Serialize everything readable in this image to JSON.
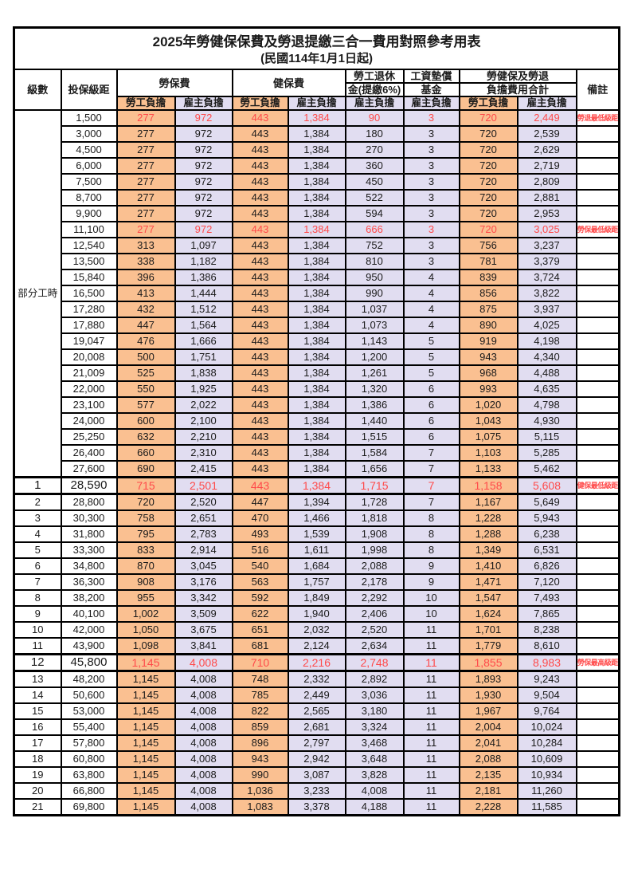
{
  "title": "2025年勞健保保費及勞退提繳三合一費用對照參考用表",
  "subtitle": "(民國114年1月1日起)",
  "colors": {
    "employee_bg": "#FAC091",
    "employer_bg": "#E1DDF1",
    "highlight_text": "#FF4A4A"
  },
  "header": {
    "level": "級數",
    "bracket": "投保級距",
    "labor_ins": "勞保費",
    "health_ins": "健保費",
    "pension_line1": "勞工退休",
    "pension_line2": "金(提繳6%)",
    "wage_fund_line1": "工資墊償",
    "wage_fund_line2": "基金",
    "total_line1": "勞健保及勞退",
    "total_line2": "負擔費用合計",
    "remark": "備註",
    "employee": "勞工負擔",
    "employer": "雇主負擔"
  },
  "group": {
    "label": "部分工時",
    "row_span": 23
  },
  "rows": [
    {
      "level": null,
      "bracket": "1,500",
      "values": [
        "277",
        "972",
        "443",
        "1,384",
        "90",
        "3",
        "720",
        "2,449"
      ],
      "remark": "勞退最低級距",
      "red": true,
      "emphasis": false
    },
    {
      "level": null,
      "bracket": "3,000",
      "values": [
        "277",
        "972",
        "443",
        "1,384",
        "180",
        "3",
        "720",
        "2,539"
      ],
      "remark": "",
      "red": false,
      "emphasis": false
    },
    {
      "level": null,
      "bracket": "4,500",
      "values": [
        "277",
        "972",
        "443",
        "1,384",
        "270",
        "3",
        "720",
        "2,629"
      ],
      "remark": "",
      "red": false,
      "emphasis": false
    },
    {
      "level": null,
      "bracket": "6,000",
      "values": [
        "277",
        "972",
        "443",
        "1,384",
        "360",
        "3",
        "720",
        "2,719"
      ],
      "remark": "",
      "red": false,
      "emphasis": false
    },
    {
      "level": null,
      "bracket": "7,500",
      "values": [
        "277",
        "972",
        "443",
        "1,384",
        "450",
        "3",
        "720",
        "2,809"
      ],
      "remark": "",
      "red": false,
      "emphasis": false
    },
    {
      "level": null,
      "bracket": "8,700",
      "values": [
        "277",
        "972",
        "443",
        "1,384",
        "522",
        "3",
        "720",
        "2,881"
      ],
      "remark": "",
      "red": false,
      "emphasis": false
    },
    {
      "level": null,
      "bracket": "9,900",
      "values": [
        "277",
        "972",
        "443",
        "1,384",
        "594",
        "3",
        "720",
        "2,953"
      ],
      "remark": "",
      "red": false,
      "emphasis": false
    },
    {
      "level": null,
      "bracket": "11,100",
      "values": [
        "277",
        "972",
        "443",
        "1,384",
        "666",
        "3",
        "720",
        "3,025"
      ],
      "remark": "勞保最低級距",
      "red": true,
      "emphasis": false
    },
    {
      "level": null,
      "bracket": "12,540",
      "values": [
        "313",
        "1,097",
        "443",
        "1,384",
        "752",
        "3",
        "756",
        "3,237"
      ],
      "remark": "",
      "red": false,
      "emphasis": false
    },
    {
      "level": null,
      "bracket": "13,500",
      "values": [
        "338",
        "1,182",
        "443",
        "1,384",
        "810",
        "3",
        "781",
        "3,379"
      ],
      "remark": "",
      "red": false,
      "emphasis": false
    },
    {
      "level": null,
      "bracket": "15,840",
      "values": [
        "396",
        "1,386",
        "443",
        "1,384",
        "950",
        "4",
        "839",
        "3,724"
      ],
      "remark": "",
      "red": false,
      "emphasis": false
    },
    {
      "level": null,
      "bracket": "16,500",
      "values": [
        "413",
        "1,444",
        "443",
        "1,384",
        "990",
        "4",
        "856",
        "3,822"
      ],
      "remark": "",
      "red": false,
      "emphasis": false
    },
    {
      "level": null,
      "bracket": "17,280",
      "values": [
        "432",
        "1,512",
        "443",
        "1,384",
        "1,037",
        "4",
        "875",
        "3,937"
      ],
      "remark": "",
      "red": false,
      "emphasis": false
    },
    {
      "level": null,
      "bracket": "17,880",
      "values": [
        "447",
        "1,564",
        "443",
        "1,384",
        "1,073",
        "4",
        "890",
        "4,025"
      ],
      "remark": "",
      "red": false,
      "emphasis": false
    },
    {
      "level": null,
      "bracket": "19,047",
      "values": [
        "476",
        "1,666",
        "443",
        "1,384",
        "1,143",
        "5",
        "919",
        "4,198"
      ],
      "remark": "",
      "red": false,
      "emphasis": false
    },
    {
      "level": null,
      "bracket": "20,008",
      "values": [
        "500",
        "1,751",
        "443",
        "1,384",
        "1,200",
        "5",
        "943",
        "4,340"
      ],
      "remark": "",
      "red": false,
      "emphasis": false
    },
    {
      "level": null,
      "bracket": "21,009",
      "values": [
        "525",
        "1,838",
        "443",
        "1,384",
        "1,261",
        "5",
        "968",
        "4,488"
      ],
      "remark": "",
      "red": false,
      "emphasis": false
    },
    {
      "level": null,
      "bracket": "22,000",
      "values": [
        "550",
        "1,925",
        "443",
        "1,384",
        "1,320",
        "6",
        "993",
        "4,635"
      ],
      "remark": "",
      "red": false,
      "emphasis": false
    },
    {
      "level": null,
      "bracket": "23,100",
      "values": [
        "577",
        "2,022",
        "443",
        "1,384",
        "1,386",
        "6",
        "1,020",
        "4,798"
      ],
      "remark": "",
      "red": false,
      "emphasis": false
    },
    {
      "level": null,
      "bracket": "24,000",
      "values": [
        "600",
        "2,100",
        "443",
        "1,384",
        "1,440",
        "6",
        "1,043",
        "4,930"
      ],
      "remark": "",
      "red": false,
      "emphasis": false
    },
    {
      "level": null,
      "bracket": "25,250",
      "values": [
        "632",
        "2,210",
        "443",
        "1,384",
        "1,515",
        "6",
        "1,075",
        "5,115"
      ],
      "remark": "",
      "red": false,
      "emphasis": false
    },
    {
      "level": null,
      "bracket": "26,400",
      "values": [
        "660",
        "2,310",
        "443",
        "1,384",
        "1,584",
        "7",
        "1,103",
        "5,285"
      ],
      "remark": "",
      "red": false,
      "emphasis": false
    },
    {
      "level": null,
      "bracket": "27,600",
      "values": [
        "690",
        "2,415",
        "443",
        "1,384",
        "1,656",
        "7",
        "1,133",
        "5,462"
      ],
      "remark": "",
      "red": false,
      "emphasis": false
    },
    {
      "level": "1",
      "bracket": "28,590",
      "values": [
        "715",
        "2,501",
        "443",
        "1,384",
        "1,715",
        "7",
        "1,158",
        "5,608"
      ],
      "remark": "健保最低級距",
      "red": true,
      "emphasis": true
    },
    {
      "level": "2",
      "bracket": "28,800",
      "values": [
        "720",
        "2,520",
        "447",
        "1,394",
        "1,728",
        "7",
        "1,167",
        "5,649"
      ],
      "remark": "",
      "red": false,
      "emphasis": false
    },
    {
      "level": "3",
      "bracket": "30,300",
      "values": [
        "758",
        "2,651",
        "470",
        "1,466",
        "1,818",
        "8",
        "1,228",
        "5,943"
      ],
      "remark": "",
      "red": false,
      "emphasis": false
    },
    {
      "level": "4",
      "bracket": "31,800",
      "values": [
        "795",
        "2,783",
        "493",
        "1,539",
        "1,908",
        "8",
        "1,288",
        "6,238"
      ],
      "remark": "",
      "red": false,
      "emphasis": false
    },
    {
      "level": "5",
      "bracket": "33,300",
      "values": [
        "833",
        "2,914",
        "516",
        "1,611",
        "1,998",
        "8",
        "1,349",
        "6,531"
      ],
      "remark": "",
      "red": false,
      "emphasis": false
    },
    {
      "level": "6",
      "bracket": "34,800",
      "values": [
        "870",
        "3,045",
        "540",
        "1,684",
        "2,088",
        "9",
        "1,410",
        "6,826"
      ],
      "remark": "",
      "red": false,
      "emphasis": false
    },
    {
      "level": "7",
      "bracket": "36,300",
      "values": [
        "908",
        "3,176",
        "563",
        "1,757",
        "2,178",
        "9",
        "1,471",
        "7,120"
      ],
      "remark": "",
      "red": false,
      "emphasis": false
    },
    {
      "level": "8",
      "bracket": "38,200",
      "values": [
        "955",
        "3,342",
        "592",
        "1,849",
        "2,292",
        "10",
        "1,547",
        "7,493"
      ],
      "remark": "",
      "red": false,
      "emphasis": false
    },
    {
      "level": "9",
      "bracket": "40,100",
      "values": [
        "1,002",
        "3,509",
        "622",
        "1,940",
        "2,406",
        "10",
        "1,624",
        "7,865"
      ],
      "remark": "",
      "red": false,
      "emphasis": false
    },
    {
      "level": "10",
      "bracket": "42,000",
      "values": [
        "1,050",
        "3,675",
        "651",
        "2,032",
        "2,520",
        "11",
        "1,701",
        "8,238"
      ],
      "remark": "",
      "red": false,
      "emphasis": false
    },
    {
      "level": "11",
      "bracket": "43,900",
      "values": [
        "1,098",
        "3,841",
        "681",
        "2,124",
        "2,634",
        "11",
        "1,779",
        "8,610"
      ],
      "remark": "",
      "red": false,
      "emphasis": false
    },
    {
      "level": "12",
      "bracket": "45,800",
      "values": [
        "1,145",
        "4,008",
        "710",
        "2,216",
        "2,748",
        "11",
        "1,855",
        "8,983"
      ],
      "remark": "勞保最高級距",
      "red": true,
      "emphasis": true
    },
    {
      "level": "13",
      "bracket": "48,200",
      "values": [
        "1,145",
        "4,008",
        "748",
        "2,332",
        "2,892",
        "11",
        "1,893",
        "9,243"
      ],
      "remark": "",
      "red": false,
      "emphasis": false
    },
    {
      "level": "14",
      "bracket": "50,600",
      "values": [
        "1,145",
        "4,008",
        "785",
        "2,449",
        "3,036",
        "11",
        "1,930",
        "9,504"
      ],
      "remark": "",
      "red": false,
      "emphasis": false
    },
    {
      "level": "15",
      "bracket": "53,000",
      "values": [
        "1,145",
        "4,008",
        "822",
        "2,565",
        "3,180",
        "11",
        "1,967",
        "9,764"
      ],
      "remark": "",
      "red": false,
      "emphasis": false
    },
    {
      "level": "16",
      "bracket": "55,400",
      "values": [
        "1,145",
        "4,008",
        "859",
        "2,681",
        "3,324",
        "11",
        "2,004",
        "10,024"
      ],
      "remark": "",
      "red": false,
      "emphasis": false
    },
    {
      "level": "17",
      "bracket": "57,800",
      "values": [
        "1,145",
        "4,008",
        "896",
        "2,797",
        "3,468",
        "11",
        "2,041",
        "10,284"
      ],
      "remark": "",
      "red": false,
      "emphasis": false
    },
    {
      "level": "18",
      "bracket": "60,800",
      "values": [
        "1,145",
        "4,008",
        "943",
        "2,942",
        "3,648",
        "11",
        "2,088",
        "10,609"
      ],
      "remark": "",
      "red": false,
      "emphasis": false
    },
    {
      "level": "19",
      "bracket": "63,800",
      "values": [
        "1,145",
        "4,008",
        "990",
        "3,087",
        "3,828",
        "11",
        "2,135",
        "10,934"
      ],
      "remark": "",
      "red": false,
      "emphasis": false
    },
    {
      "level": "20",
      "bracket": "66,800",
      "values": [
        "1,145",
        "4,008",
        "1,036",
        "3,233",
        "4,008",
        "11",
        "2,181",
        "11,260"
      ],
      "remark": "",
      "red": false,
      "emphasis": false
    },
    {
      "level": "21",
      "bracket": "69,800",
      "values": [
        "1,145",
        "4,008",
        "1,083",
        "3,378",
        "4,188",
        "11",
        "2,228",
        "11,585"
      ],
      "remark": "",
      "red": false,
      "emphasis": false
    }
  ]
}
